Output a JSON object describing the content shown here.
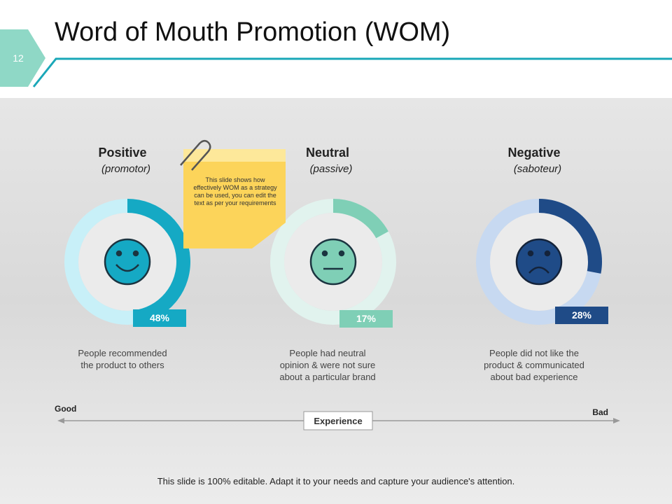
{
  "slide_number": "12",
  "title": "Word of Mouth Promotion (WOM)",
  "sticky_note": "This slide shows how effectively WOM as a strategy can be used, you can edit the text as per your requirements",
  "cards": [
    {
      "heading": "Positive",
      "subheading": "(promotor)",
      "value": 48,
      "value_label": "48%",
      "color": "#15a9c4",
      "track_color": "#c8f0f8",
      "description_lines": [
        "People recommended",
        "the product to others"
      ]
    },
    {
      "heading": "Neutral",
      "subheading": "(passive)",
      "value": 17,
      "value_label": "17%",
      "color": "#7fcfb6",
      "track_color": "#e1f3ee",
      "description_lines": [
        "People had neutral",
        "opinion & were not sure",
        "about a particular brand"
      ]
    },
    {
      "heading": "Negative",
      "subheading": "(saboteur)",
      "value": 28,
      "value_label": "28%",
      "color": "#1f4b87",
      "track_color": "#c7d9f1",
      "description_lines": [
        "People did not like the",
        "product & communicated",
        "about bad experience"
      ]
    }
  ],
  "scale": {
    "left": "Good",
    "right": "Bad",
    "center": "Experience"
  },
  "footer": "This slide is 100% editable. Adapt it to your needs and capture your audience's attention."
}
